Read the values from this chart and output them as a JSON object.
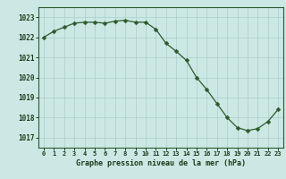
{
  "hours": [
    0,
    1,
    2,
    3,
    4,
    5,
    6,
    7,
    8,
    9,
    10,
    11,
    12,
    13,
    14,
    15,
    16,
    17,
    18,
    19,
    20,
    21,
    22,
    23
  ],
  "pressure": [
    1022.0,
    1022.3,
    1022.5,
    1022.7,
    1022.75,
    1022.75,
    1022.7,
    1022.8,
    1022.85,
    1022.75,
    1022.75,
    1022.4,
    1021.7,
    1021.3,
    1020.85,
    1020.0,
    1019.4,
    1018.7,
    1018.0,
    1017.5,
    1017.35,
    1017.45,
    1017.8,
    1018.4
  ],
  "line_color": "#2d5a2d",
  "marker": "D",
  "marker_size": 2.5,
  "bg_color": "#cce8e4",
  "plot_bg_color": "#cce8e4",
  "grid_color": "#aacfc8",
  "grid_linewidth": 0.5,
  "xlabel": "Graphe pression niveau de la mer (hPa)",
  "xlabel_color": "#1a3a1a",
  "tick_color": "#1a3a1a",
  "ylim": [
    1016.5,
    1023.5
  ],
  "yticks": [
    1017,
    1018,
    1019,
    1020,
    1021,
    1022,
    1023
  ],
  "xlim": [
    -0.5,
    23.5
  ],
  "xticks": [
    0,
    1,
    2,
    3,
    4,
    5,
    6,
    7,
    8,
    9,
    10,
    11,
    12,
    13,
    14,
    15,
    16,
    17,
    18,
    19,
    20,
    21,
    22,
    23
  ],
  "border_color": "#2d5a2d"
}
